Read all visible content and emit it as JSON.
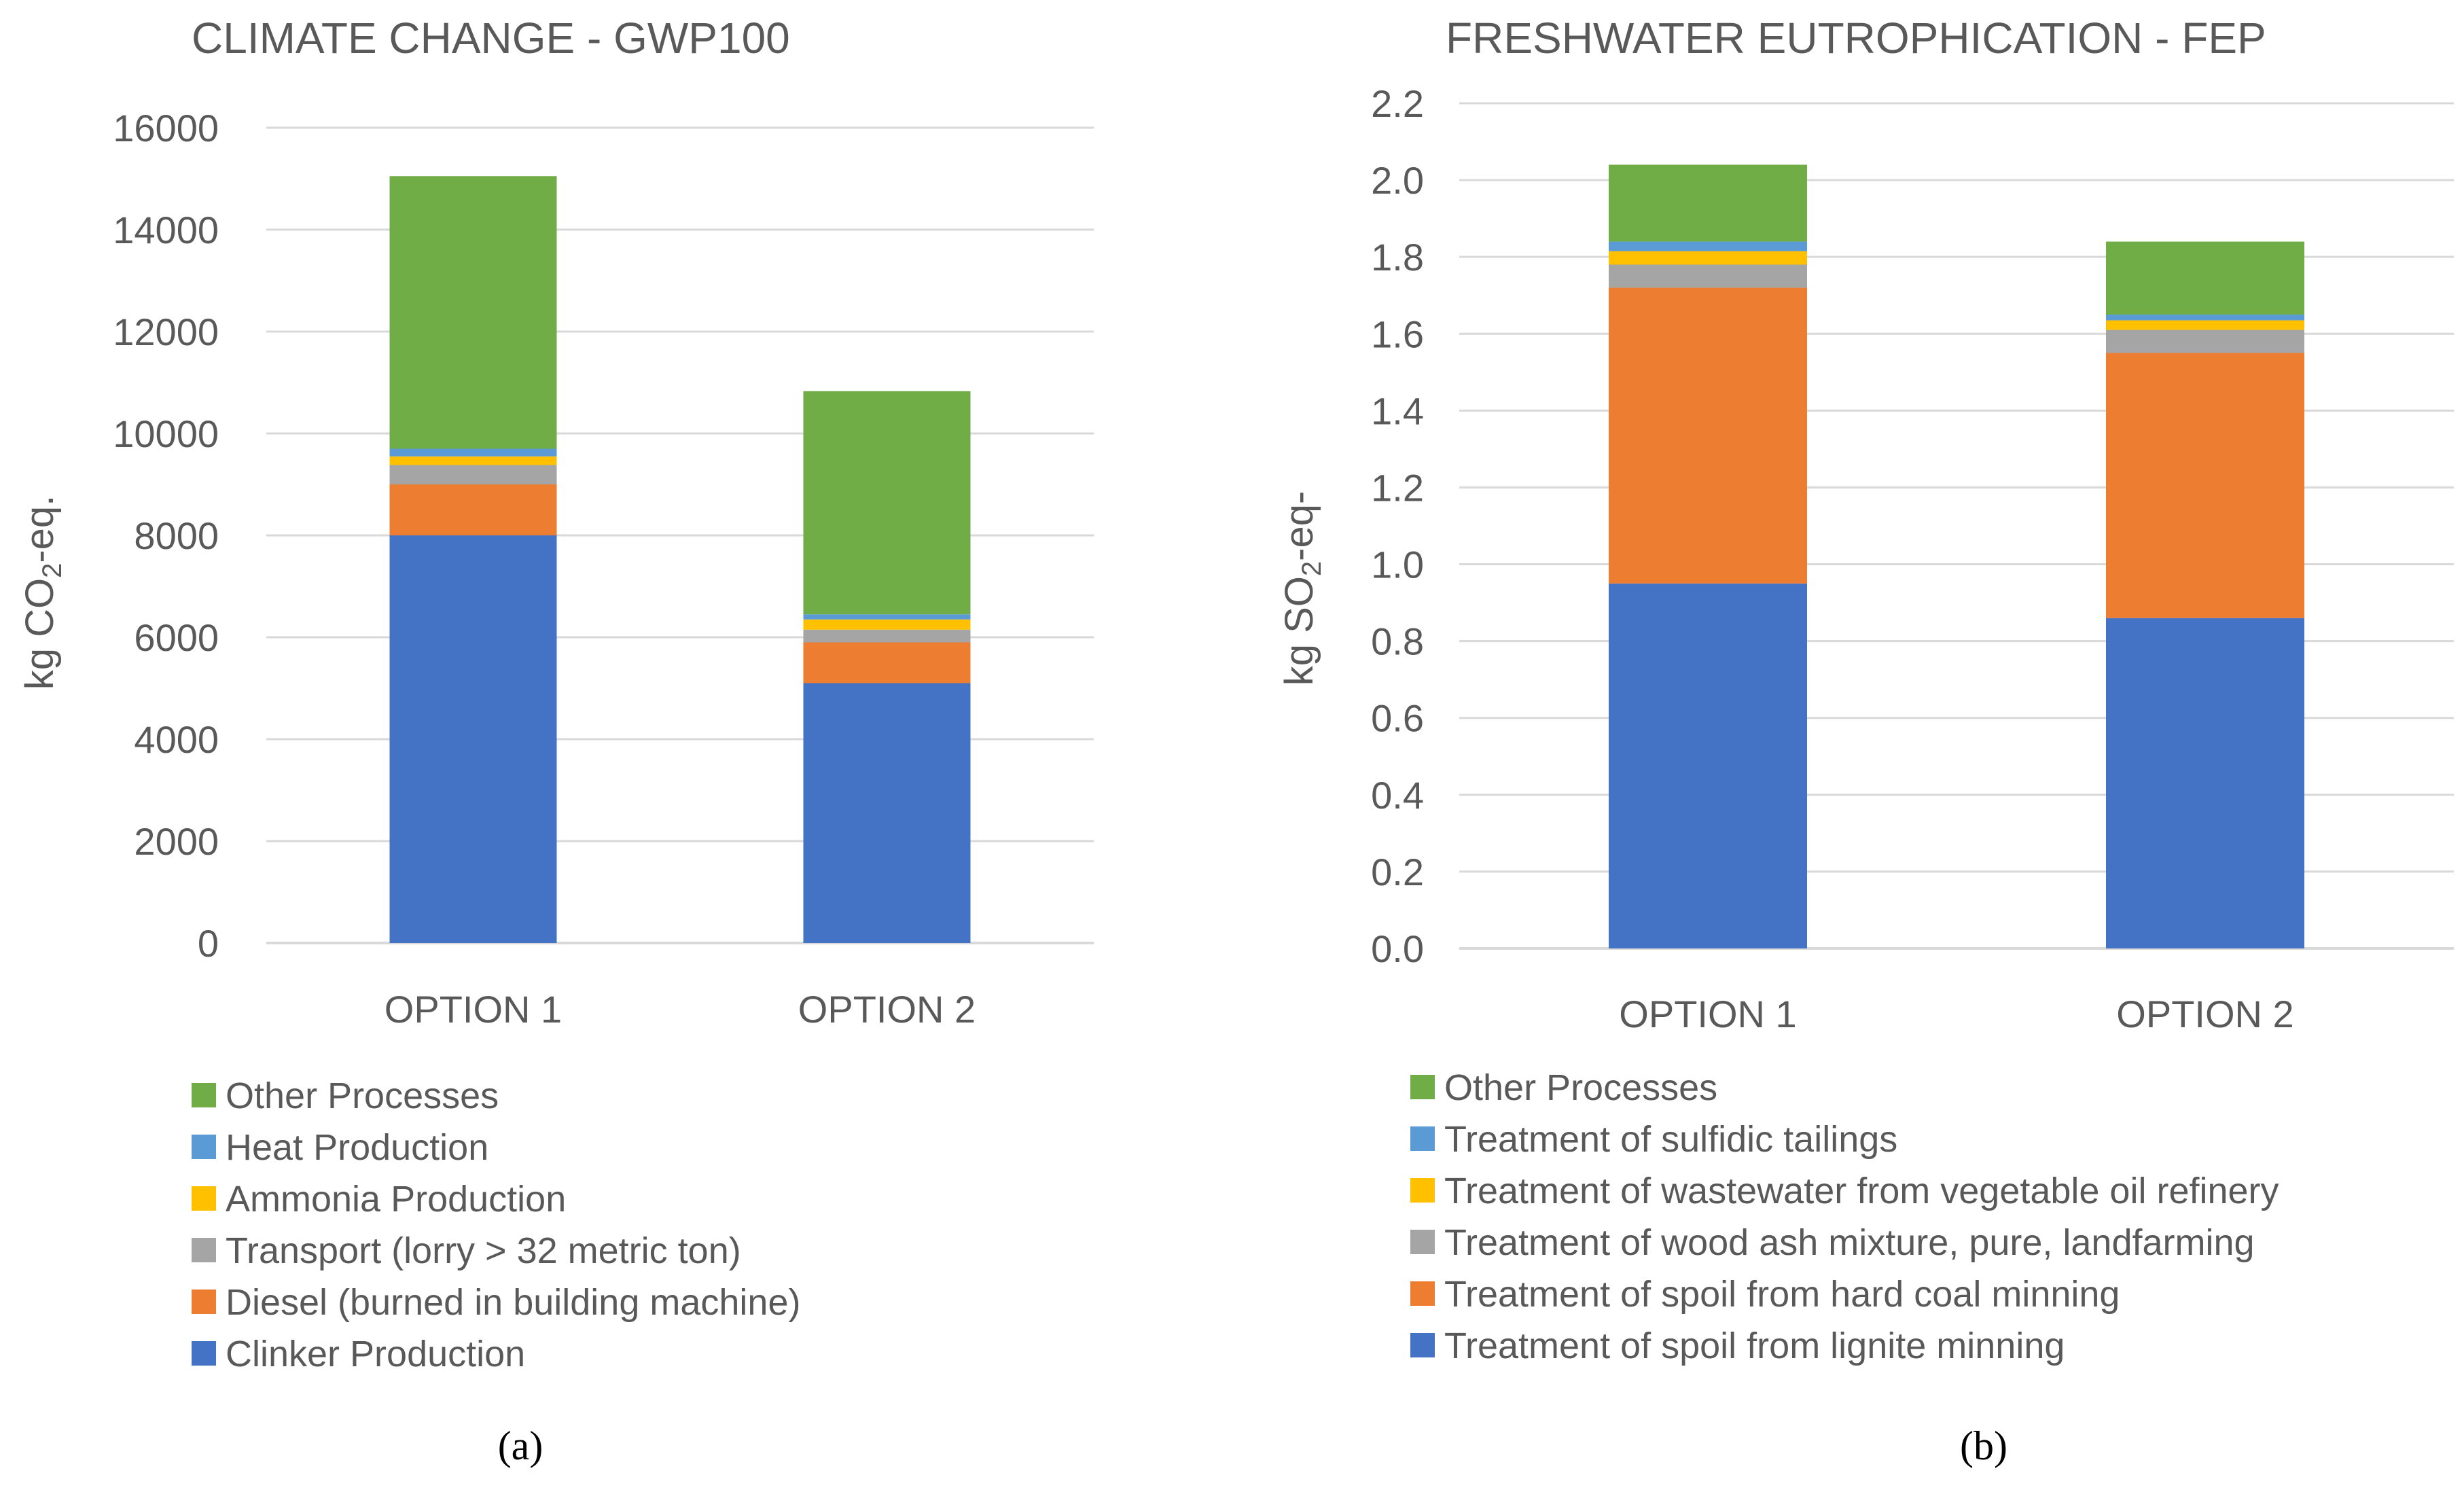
{
  "chart_data": [
    {
      "type": "bar",
      "stacked": true,
      "title": "CLIMATE CHANGE - GWP100",
      "ylabel_main": "kg CO",
      "ylabel_sub": "2",
      "ylabel_tail": "-eq.",
      "xlabel": "",
      "ylim": [
        0,
        16000
      ],
      "yticks": [
        0,
        2000,
        4000,
        6000,
        8000,
        10000,
        12000,
        14000,
        16000
      ],
      "tick_decimals": 0,
      "categories": [
        "OPTION 1",
        "OPTION 2"
      ],
      "series": [
        {
          "name": "Clinker Production",
          "color": "#4472c4",
          "values": [
            8000,
            5100
          ]
        },
        {
          "name": "Diesel (burned in building machine)",
          "color": "#ed7d31",
          "values": [
            1000,
            800
          ]
        },
        {
          "name": "Transport (lorry > 32 metric ton)",
          "color": "#a5a5a5",
          "values": [
            380,
            250
          ]
        },
        {
          "name": "Ammonia Production",
          "color": "#ffc000",
          "values": [
            170,
            200
          ]
        },
        {
          "name": "Heat Production",
          "color": "#5b9bd5",
          "values": [
            150,
            100
          ]
        },
        {
          "name": "Other Processes",
          "color": "#70ad47",
          "values": [
            5350,
            4380
          ]
        }
      ],
      "legend_order": [
        5,
        4,
        3,
        2,
        1,
        0
      ],
      "panel_label": "(a)"
    },
    {
      "type": "bar",
      "stacked": true,
      "title": "FRESHWATER EUTROPHICATION - FEP",
      "ylabel_main": "kg SO",
      "ylabel_sub": "2",
      "ylabel_tail": "-eq-",
      "xlabel": "",
      "ylim": [
        0,
        2.2
      ],
      "yticks": [
        0,
        0.2,
        0.4,
        0.6,
        0.8,
        1.0,
        1.2,
        1.4,
        1.6,
        1.8,
        2.0,
        2.2
      ],
      "tick_decimals": 1,
      "categories": [
        "OPTION 1",
        "OPTION 2"
      ],
      "series": [
        {
          "name": "Treatment of spoil from lignite minning",
          "color": "#4472c4",
          "values": [
            0.95,
            0.86
          ]
        },
        {
          "name": "Treatment of spoil from hard coal minning",
          "color": "#ed7d31",
          "values": [
            0.77,
            0.69
          ]
        },
        {
          "name": "Treatment of wood ash mixture, pure, landfarming",
          "color": "#a5a5a5",
          "values": [
            0.06,
            0.06
          ]
        },
        {
          "name": "Treatment of wastewater from vegetable oil refinery",
          "color": "#ffc000",
          "values": [
            0.035,
            0.025
          ]
        },
        {
          "name": "Treatment of sulfidic tailings",
          "color": "#5b9bd5",
          "values": [
            0.025,
            0.015
          ]
        },
        {
          "name": "Other Processes",
          "color": "#70ad47",
          "values": [
            0.2,
            0.19
          ]
        }
      ],
      "legend_order": [
        5,
        4,
        3,
        2,
        1,
        0
      ],
      "panel_label": "(b)"
    }
  ]
}
